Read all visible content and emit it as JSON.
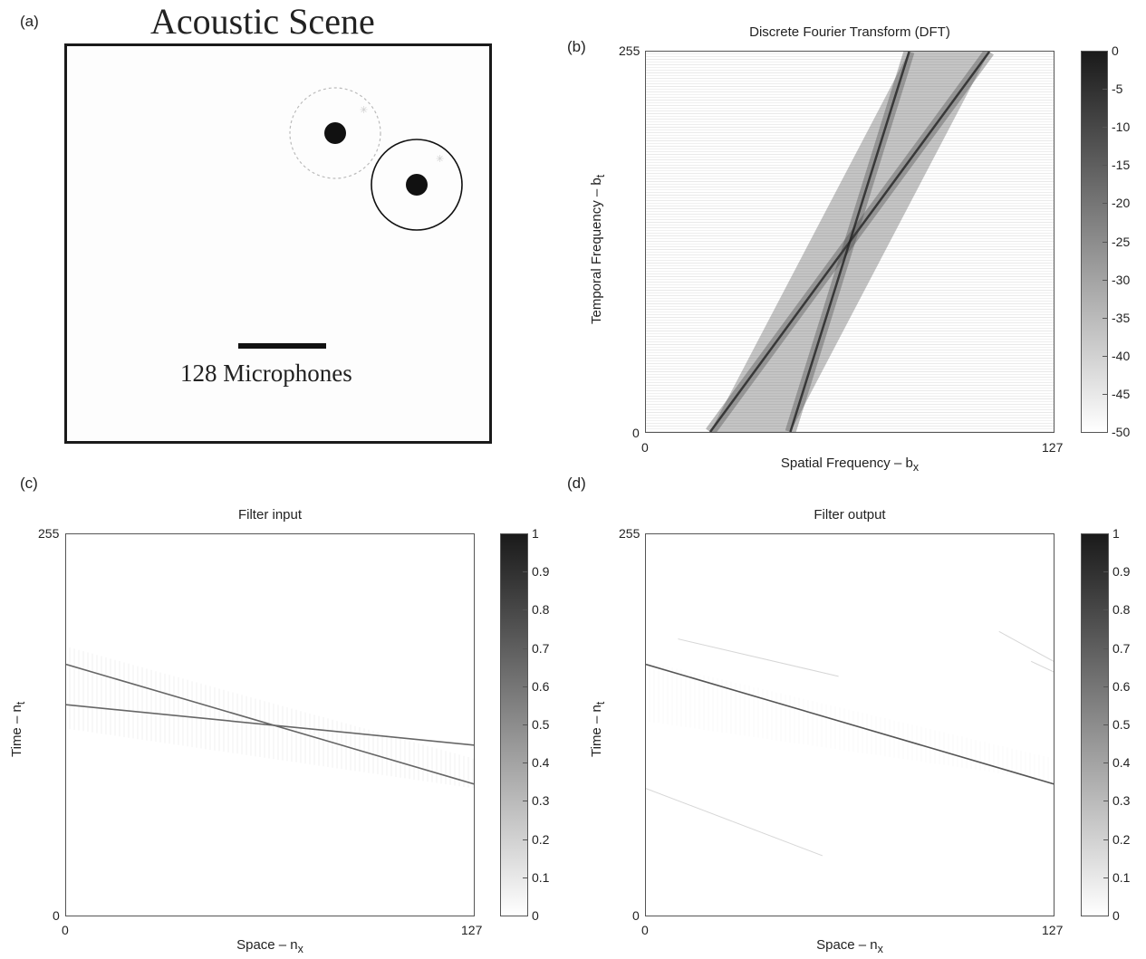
{
  "panel_a": {
    "letter": "(a)",
    "title": "Acoustic Scene",
    "caption": "128 Microphones"
  },
  "panel_b": {
    "letter": "(b)"
  },
  "panel_c": {
    "letter": "(c)"
  },
  "panel_d": {
    "letter": "(d)"
  },
  "colors": {
    "ink": "#1a1a1a",
    "axis": "#555555",
    "gray_line": "#777777"
  },
  "chart_data": [
    {
      "id": "dft",
      "type": "heatmap",
      "title": "Discrete Fourier Transform (DFT)",
      "xlabel": "Spatial Frequency – b",
      "xlabel_sub": "x",
      "ylabel": "Temporal Frequency – b",
      "ylabel_sub": "t",
      "xlim": [
        0,
        127
      ],
      "ylim": [
        0,
        255
      ],
      "xticks": [
        "0",
        "127"
      ],
      "yticks": [
        "0",
        "255"
      ],
      "colorbar": {
        "range": [
          -50,
          0
        ],
        "ticks": [
          "0",
          "-5",
          "-10",
          "-15",
          "-20",
          "-25",
          "-30",
          "-35",
          "-40",
          "-45",
          "-50"
        ]
      },
      "features": [
        {
          "kind": "line",
          "points": [
            [
              20,
              0
            ],
            [
              107,
              255
            ]
          ]
        },
        {
          "kind": "line",
          "points": [
            [
              45,
              0
            ],
            [
              82,
              255
            ]
          ]
        }
      ]
    },
    {
      "id": "filter_input",
      "type": "heatmap",
      "title": "Filter input",
      "xlabel": "Space – n",
      "xlabel_sub": "x",
      "ylabel": "Time – n",
      "ylabel_sub": "t",
      "xlim": [
        0,
        127
      ],
      "ylim": [
        0,
        255
      ],
      "xticks": [
        "0",
        "127"
      ],
      "yticks": [
        "0",
        "255"
      ],
      "colorbar": {
        "range": [
          0,
          1
        ],
        "ticks": [
          "1",
          "0.9",
          "0.8",
          "0.7",
          "0.6",
          "0.5",
          "0.4",
          "0.3",
          "0.2",
          "0.1",
          "0"
        ]
      },
      "features": [
        {
          "kind": "line",
          "points": [
            [
              0,
              168
            ],
            [
              127,
              88
            ]
          ]
        },
        {
          "kind": "line",
          "points": [
            [
              0,
              141
            ],
            [
              127,
              114
            ]
          ]
        }
      ]
    },
    {
      "id": "filter_output",
      "type": "heatmap",
      "title": "Filter output",
      "xlabel": "Space – n",
      "xlabel_sub": "x",
      "ylabel": "Time – n",
      "ylabel_sub": "t",
      "xlim": [
        0,
        127
      ],
      "ylim": [
        0,
        255
      ],
      "xticks": [
        "0",
        "127"
      ],
      "yticks": [
        "0",
        "255"
      ],
      "colorbar": {
        "range": [
          0,
          1
        ],
        "ticks": [
          "1",
          "0.9",
          "0.8",
          "0.7",
          "0.6",
          "0.5",
          "0.4",
          "0.3",
          "0.2",
          "0.1",
          "0"
        ]
      },
      "features": [
        {
          "kind": "line",
          "points": [
            [
              0,
              168
            ],
            [
              127,
              88
            ]
          ]
        }
      ]
    }
  ]
}
